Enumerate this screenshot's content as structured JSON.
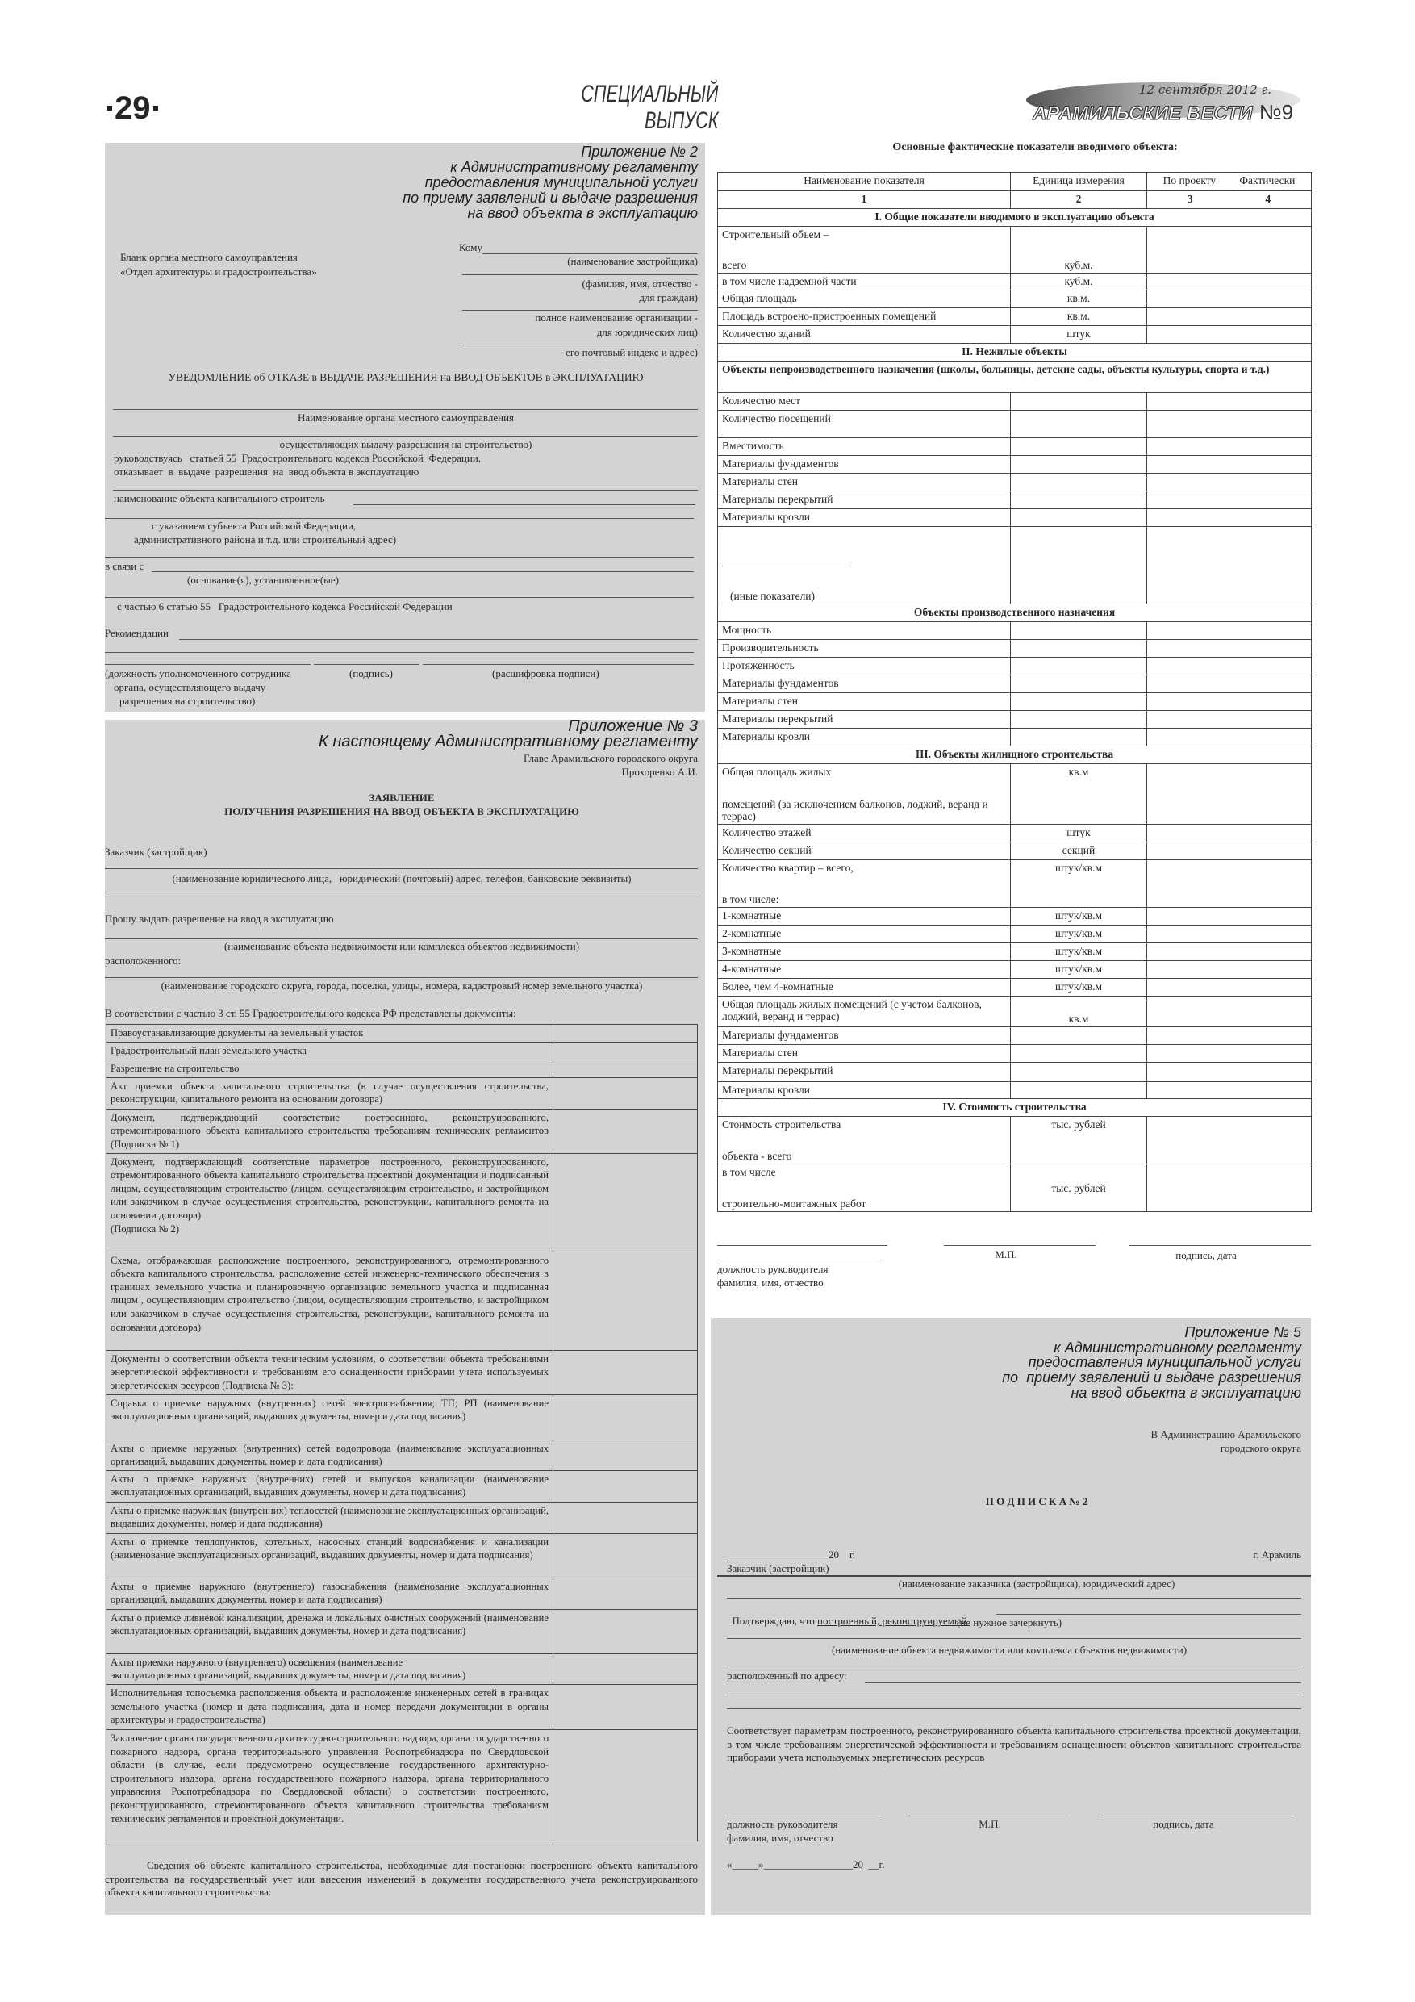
{
  "header": {
    "page_number": "29",
    "section_line1": "СПЕЦИАЛЬНЫЙ",
    "section_line2": "ВЫПУСК",
    "date": "12 сентября 2012 г.",
    "masthead": "АРАМИЛЬСКИЕ ВЕСТИ",
    "issue": "№9"
  },
  "appendix2": {
    "title_lines": [
      "Приложение № 2",
      "к Административному регламенту",
      "предоставления муниципальной услуги",
      "по приему заявлений и выдаче разрешения",
      "на ввод объекта в эксплуатацию"
    ],
    "to_label": "Кому",
    "sender_lines": [
      "Бланк органа местного самоуправления",
      "«Отдел архитектуры и градостроительства»"
    ],
    "recipient_captions": [
      "(наименование застройщика)",
      "(фамилия, имя, отчество -",
      "для граждан)",
      "полное наименование организации -",
      "для юридических лиц)",
      "его почтовый индекс и адрес)"
    ],
    "notice_title": "УВЕДОМЛЕНИЕ об ОТКАЗЕ в ВЫДАЧЕ РАЗРЕШЕНИЯ на ВВОД ОБЪЕКТОВ в ЭКСПЛУАТАЦИЮ",
    "organ_caption": "Наименование органа местного самоуправления",
    "organ_caption2": "осуществляющих выдачу разрешения на строительство)",
    "guided_by": "руководствуясь   статьей 55  Градостроительного кодекса Российской  Федерации,",
    "refuses": "отказывает  в  выдаче  разрешения  на  ввод объекта в эксплуатацию",
    "object_name_label": "наименование объекта капитального строитель",
    "address_caption1": "с указанием субъекта Российской Федерации,",
    "address_caption2": "административного района и т.д. или строительный адрес)",
    "due_to_label": "в связи с",
    "grounds_caption": "(основание(я), установленное(ые)",
    "per_part": "с частью 6 статью 55   Градостроительного кодекса Российской Федерации",
    "recommendations_label": "Рекомендации",
    "sig_position": [
      "(должность уполномоченного сотрудника",
      "органа, осуществляющего выдачу",
      "разрешения на строительство)"
    ],
    "sig_signature": "(подпись)",
    "sig_decode": "(расшифровка подписи)"
  },
  "appendix3": {
    "title_lines": [
      "Приложение № 3",
      "К настоящему Административному регламенту"
    ],
    "addressee_lines": [
      "Главе Арамильского городского округа",
      "Прохоренко А.И."
    ],
    "doc_title_lines": [
      "ЗАЯВЛЕНИЕ",
      "ПОЛУЧЕНИЯ РАЗРЕШЕНИЯ НА ВВОД ОБЪЕКТА В ЭКСПЛУАТАЦИЮ"
    ],
    "customer_label": "Заказчик (застройщик)",
    "customer_caption": "(наименование юридического лица,   юридический (почтовый) адрес, телефон, банковские реквизиты)",
    "request": "Прошу выдать разрешение на ввод в эксплуатацию",
    "object_caption": "(наименование объекта недвижимости или комплекса объектов недвижимости)",
    "located_label": "расположенного:",
    "location_caption": "(наименование городского округа, города, поселка, улицы, номера, кадастровый номер земельного участка)",
    "documents_intro": "В соответствии с частью 3 ст. 55 Градостроительного кодекса РФ представлены документы:",
    "documents": [
      "Правоустанавливающие документы на земельный участок",
      "Градостроительный план земельного участка",
      "Разрешение на строительство",
      "Акт приемки объекта капитального строительства (в случае осуществления строительства, реконструкции, капитального ремонта на основании договора)",
      "Документ, подтверждающий соответствие построенного, реконструированного, отремонтированного объекта капитального строительства требованиям технических регламентов                   (Подписка № 1)",
      "Документ, подтверждающий соответствие параметров построенного, реконструированного, отремонтированного объекта капитального строительства проектной документации и подписанный лицом, осуществляющим строительство (лицом, осуществляющим строительство, и застройщиком или заказчиком в случае осуществления строительства, реконструкции, капитального ремонта на основании договора)\n (Подписка № 2)",
      "Схема, отображающая расположение построенного, реконструированного, отремонтированного объекта капитального строительства, расположение сетей инженерно-технического обеспечения в границах земельного участка и планировочную организацию земельного участка и подписанная лицом , осуществляющим строительство (лицом, осуществляющим строительство, и застройщиком или заказчиком в случае осуществления строительства, реконструкции, капитального ремонта на основании договора)",
      "Документы о соответствии объекта техническим условиям, о соответствии объекта требованиями энергетической эффективности и требованиям его оснащенности приборами учета используемых энергетических ресурсов  (Подписка  № 3):",
      "Справка о приемке наружных (внутренних) сетей электроснабжения; ТП; РП (наименование эксплуатационных организаций, выдавших документы, номер и дата подписания)",
      "Акты о приемке наружных (внутренних)  сетей водопровода (наименование эксплуатационных организаций, выдавших документы, номер и дата подписания)",
      "Акты о приемке наружных (внутренних) сетей и выпусков канализации (наименование эксплуатационных организаций, выдавших документы, номер и дата подписания)",
      "Акты о приемке наружных (внутренних) теплосетей (наименование эксплуатационных организаций, выдавших документы, номер и дата подписания)",
      "Акты о приемке теплопунктов, котельных, насосных станций водоснабжения и канализации (наименование эксплуатационных организаций, выдавших документы, номер и дата подписания)",
      "Акты о приемке наружного (внутреннего)  газоснабжения (наименование эксплуатационных организаций, выдавших документы, номер и дата подписания)",
      "Акты о приемке ливневой канализации, дренажа и локальных очистных сооружений (наименование эксплуатационных организаций, выдавших документы, номер и дата подписания)",
      "Акты приемки наружного (внутреннего)  освещения (наименование\nэксплуатационных организаций, выдавших документы, номер и дата подписания)",
      "Исполнительная топосъемка расположения объекта и расположение инженерных сетей в границах земельного участка (номер и дата подписания, дата и номер передачи документации в органы архитектуры и градостроительства)",
      "Заключение органа государственного архитектурно-строительного надзора, органа государственного пожарного надзора, органа территориального управления Роспотребнадзора по Свердловской области (в случае, если предусмотрено осуществление государственного архитектурно-строительного надзора, органа государственного пожарного надзора, органа территориального управления Роспотребнадзора по Свердловской области) о соответствии построенного, реконструированного, отремонтированного объекта капитального строительства требованиям технических регламентов и проектной документации."
    ],
    "closing_paragraph": "Сведения об объекте капитального строительства, необходимые для постановки построенного объекта капитального строительства на государственный учет или внесения изменений в документы государственного учета реконструированного объекта капитального строительства:"
  },
  "indicators": {
    "title": "Основные фактические показатели вводимого объекта:",
    "columns": [
      "Наименование показателя",
      "Единица измерения",
      "По проекту",
      "Фактически"
    ],
    "column_numbers": [
      "1",
      "2",
      "3",
      "4"
    ],
    "rows": [
      {
        "type": "section",
        "text": "I. Общие показатели вводимого в эксплуатацию объекта"
      },
      {
        "name": [
          "Строительный объем –",
          "всего"
        ],
        "unit": "куб.м."
      },
      {
        "name": [
          "в том числе надземной части"
        ],
        "unit": "куб.м."
      },
      {
        "name": [
          "Общая площадь"
        ],
        "unit": "кв.м."
      },
      {
        "name": [
          "Площадь встроено-пристроенных помещений"
        ],
        "unit": "кв.м."
      },
      {
        "name": [
          "Количество зданий"
        ],
        "unit": "штук"
      },
      {
        "type": "section",
        "text": "II. Нежилые объекты"
      },
      {
        "type": "subhead",
        "text": "Объекты непроизводственного назначения (школы, больницы, детские сады, объекты культуры, спорта и т.д.)"
      },
      {
        "name": [
          "Количество мест"
        ],
        "unit": ""
      },
      {
        "name": [
          "Количество посещений"
        ],
        "unit": ""
      },
      {
        "name": [
          "Вместимость"
        ],
        "unit": ""
      },
      {
        "name": [
          "Материалы фундаментов"
        ],
        "unit": ""
      },
      {
        "name": [
          "Материалы стен"
        ],
        "unit": ""
      },
      {
        "name": [
          "Материалы перекрытий"
        ],
        "unit": ""
      },
      {
        "name": [
          "Материалы кровли"
        ],
        "unit": ""
      },
      {
        "name": [
          "(иные показатели)"
        ],
        "unit": ""
      },
      {
        "type": "section",
        "text": "Объекты производственного назначения"
      },
      {
        "name": [
          "Мощность"
        ],
        "unit": ""
      },
      {
        "name": [
          "Производительность"
        ],
        "unit": ""
      },
      {
        "name": [
          "Протяженность"
        ],
        "unit": ""
      },
      {
        "name": [
          "Материалы фундаментов"
        ],
        "unit": ""
      },
      {
        "name": [
          "Материалы стен"
        ],
        "unit": ""
      },
      {
        "name": [
          "Материалы перекрытий"
        ],
        "unit": ""
      },
      {
        "name": [
          "Материалы кровли"
        ],
        "unit": ""
      },
      {
        "type": "section",
        "text": "III. Объекты жилищного строительства"
      },
      {
        "name": [
          "Общая площадь жилых",
          "помещений (за исключением балконов, лоджий, веранд и террас)"
        ],
        "unit": "кв.м"
      },
      {
        "name": [
          "Количество этажей"
        ],
        "unit": "штук"
      },
      {
        "name": [
          "Количество секций"
        ],
        "unit": "секций"
      },
      {
        "name": [
          "Количество квартир – всего,",
          "в том числе:"
        ],
        "unit": "штук/кв.м"
      },
      {
        "name": [
          "1-комнатные"
        ],
        "unit": "штук/кв.м"
      },
      {
        "name": [
          "2-комнатные"
        ],
        "unit": "штук/кв.м"
      },
      {
        "name": [
          "3-комнатные"
        ],
        "unit": "штук/кв.м"
      },
      {
        "name": [
          "4-комнатные"
        ],
        "unit": "штук/кв.м"
      },
      {
        "name": [
          "Более, чем 4-комнатные"
        ],
        "unit": "штук/кв.м"
      },
      {
        "name": [
          "Общая площадь жилых помещений (с учетом балконов, лоджий, веранд  и террас)"
        ],
        "unit": "кв.м"
      },
      {
        "name": [
          "Материалы фундаментов"
        ],
        "unit": ""
      },
      {
        "name": [
          "Материалы стен"
        ],
        "unit": ""
      },
      {
        "name": [
          "Материалы перекрытий"
        ],
        "unit": ""
      },
      {
        "name": [
          "Материалы кровли"
        ],
        "unit": ""
      },
      {
        "type": "section",
        "text": "IV. Стоимость строительства"
      },
      {
        "name": [
          "Стоимость строительства",
          "объекта - всего"
        ],
        "unit": "тыс. рублей"
      },
      {
        "name": [
          "в том числе",
          "строительно-монтажных работ"
        ],
        "unit": "тыс. рублей"
      }
    ],
    "signature": {
      "stamp": "М.П.",
      "sign_date": "подпись, дата",
      "position_lines": [
        "должность руководителя",
        "фамилия, имя, отчество"
      ]
    }
  },
  "appendix5": {
    "title_lines": [
      "Приложение № 5",
      "к Административному регламенту",
      "предоставления муниципальной услуги",
      "по  приему заявлений и выдаче разрешения",
      "на ввод объекта в эксплуатацию"
    ],
    "addressee_lines": [
      "В Администрацию Арамильского",
      "городского округа"
    ],
    "doc_title": "П О Д П И С К А № 2",
    "date_suffix": "20    г.",
    "city": "г. Арамиль",
    "customer_label": "Заказчик (застройщик)",
    "customer_caption": "(наименование заказчика (застройщика), юридический адрес)",
    "confirm_prefix": "Подтверждаю, что ",
    "confirm_options": "построенный, реконструируемый.",
    "strike_caption": "(не нужное зачеркнуть)",
    "object_caption": "(наименование объекта недвижимости или комплекса объектов недвижимости)",
    "address_label": "расположенный по адресу:",
    "compliance_paragraph": "Соответствует параметрам построенного, реконструированного объекта капитального строительства проектной документации, в том числе требованиям энергетической эффективности и требованиям оснащенности объектов капитального строительства приборами учета используемых энергетических ресурсов",
    "signature": {
      "position_lines": [
        "должность руководителя",
        "фамилия, имя, отчество"
      ],
      "stamp": "М.П.",
      "sign_date": "подпись, дата"
    },
    "date_line": "«_____»_________________20  __г."
  },
  "colors": {
    "panel": "#d3d3d3",
    "text": "#262626",
    "rule": "#444444"
  }
}
